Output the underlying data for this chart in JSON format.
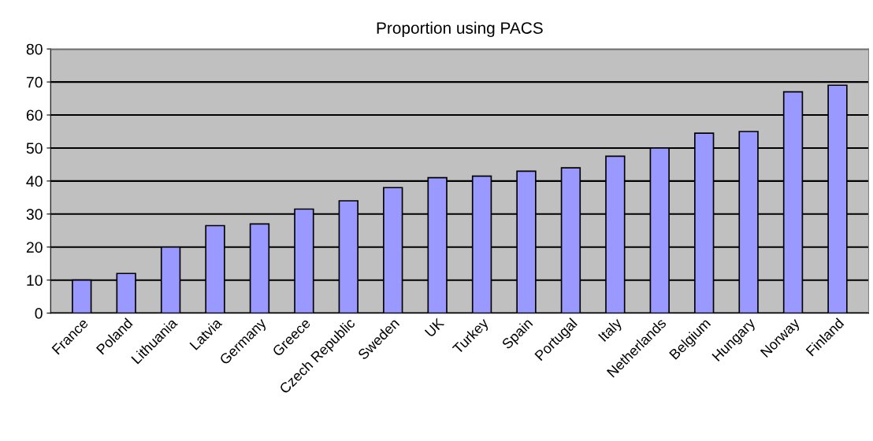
{
  "chart_data": {
    "type": "bar",
    "title": "Proportion using PACS",
    "categories": [
      "France",
      "Poland",
      "Lithuania",
      "Latvia",
      "Germany",
      "Greece",
      "Czech Republic",
      "Sweden",
      "UK",
      "Turkey",
      "Spain",
      "Portugal",
      "Italy",
      "Netherlands",
      "Belgium",
      "Hungary",
      "Norway",
      "Finland"
    ],
    "values": [
      10,
      12,
      20,
      26.5,
      27,
      31.5,
      34,
      38,
      41,
      41.5,
      43,
      44,
      47.5,
      50,
      54.5,
      55,
      67,
      69
    ],
    "color": "#9999ff",
    "ylim": [
      0,
      80
    ],
    "yticks": [
      0,
      10,
      20,
      30,
      40,
      50,
      60,
      70,
      80
    ],
    "grid": "y"
  }
}
